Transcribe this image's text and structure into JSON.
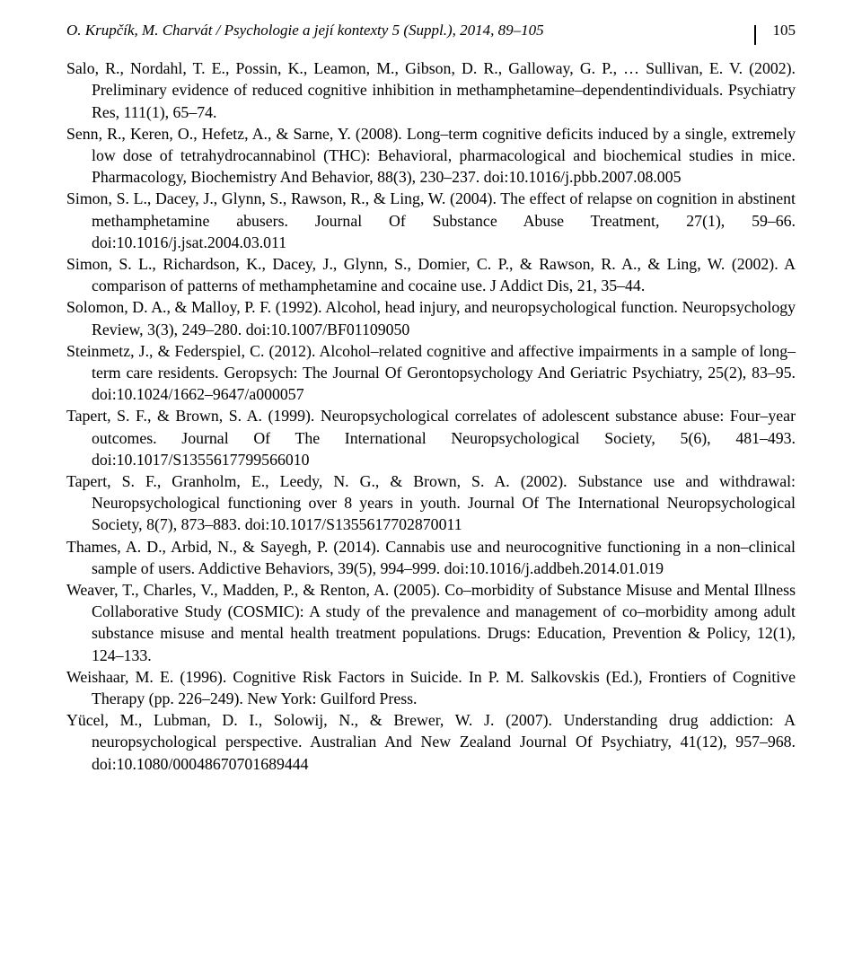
{
  "running_head": {
    "journal": "O. Krupčík, M. Charvát / Psychologie a její kontexty 5 (Suppl.), 2014, 89–105",
    "page_number": "105"
  },
  "references": [
    "Salo, R., Nordahl, T. E., Possin, K., Leamon, M., Gibson, D. R., Galloway, G. P., … Sullivan, E. V. (2002). Preliminary evidence of reduced cognitive inhibition in methamphetamine–dependentindividuals. Psychiatry Res, 111(1), 65–74.",
    "Senn, R., Keren, O., Hefetz, A., & Sarne, Y. (2008). Long–term cognitive deficits induced by a single, extremely low dose of tetrahydrocannabinol (THC): Behavioral, pharmacological and biochemical studies in mice. Pharmacology, Biochemistry And Behavior, 88(3), 230–237. doi:10.1016/j.pbb.2007.08.005",
    "Simon, S. L., Dacey, J., Glynn, S., Rawson, R., & Ling, W. (2004). The effect of relapse on cognition in abstinent methamphetamine abusers. Journal Of Substance Abuse Treatment, 27(1), 59–66. doi:10.1016/j.jsat.2004.03.011",
    "Simon, S. L., Richardson, K., Dacey, J., Glynn, S., Domier, C. P., & Rawson, R. A., & Ling, W. (2002). A comparison of patterns of methamphetamine and cocaine use. J Addict Dis, 21, 35–44.",
    "Solomon, D. A., & Malloy, P. F. (1992). Alcohol, head injury, and neuropsychological function. Neuropsychology Review, 3(3), 249–280. doi:10.1007/BF01109050",
    "Steinmetz, J., & Federspiel, C. (2012). Alcohol–related cognitive and affective impairments in a sample of long–term care residents. Geropsych: The Journal Of Gerontopsychology And Geriatric Psychiatry, 25(2), 83–95. doi:10.1024/1662–9647/a000057",
    "Tapert, S. F., & Brown, S. A. (1999). Neuropsychological correlates of adolescent substance abuse: Four–year outcomes. Journal Of The International Neuropsychological Society, 5(6), 481–493. doi:10.1017/S1355617799566010",
    "Tapert, S. F., Granholm, E., Leedy, N. G., & Brown, S. A. (2002). Substance use and withdrawal: Neuropsychological functioning over 8 years in youth. Journal Of The International Neuropsychological Society, 8(7), 873–883. doi:10.1017/S1355617702870011",
    "Thames, A. D., Arbid, N., & Sayegh, P. (2014). Cannabis use and neurocognitive functioning in a non–clinical sample of users. Addictive Behaviors, 39(5), 994–999. doi:10.1016/j.addbeh.2014.01.019",
    "Weaver, T., Charles, V., Madden, P., & Renton, A. (2005). Co–morbidity of Substance Misuse and Mental Illness Collaborative Study (COSMIC): A study of the prevalence and management of co–morbidity among adult substance misuse and mental health treatment populations. Drugs: Education, Prevention & Policy, 12(1), 124–133.",
    "Weishaar, M. E. (1996). Cognitive Risk Factors in Suicide. In P. M. Salkovskis (Ed.), Frontiers of Cognitive Therapy (pp. 226–249). New York: Guilford Press.",
    "Yücel, M., Lubman, D. I., Solowij, N., & Brewer, W. J. (2007). Understanding drug addiction: A neuropsychological perspective. Australian And New Zealand Journal Of Psychiatry, 41(12), 957–968. doi:10.1080/00048670701689444"
  ]
}
